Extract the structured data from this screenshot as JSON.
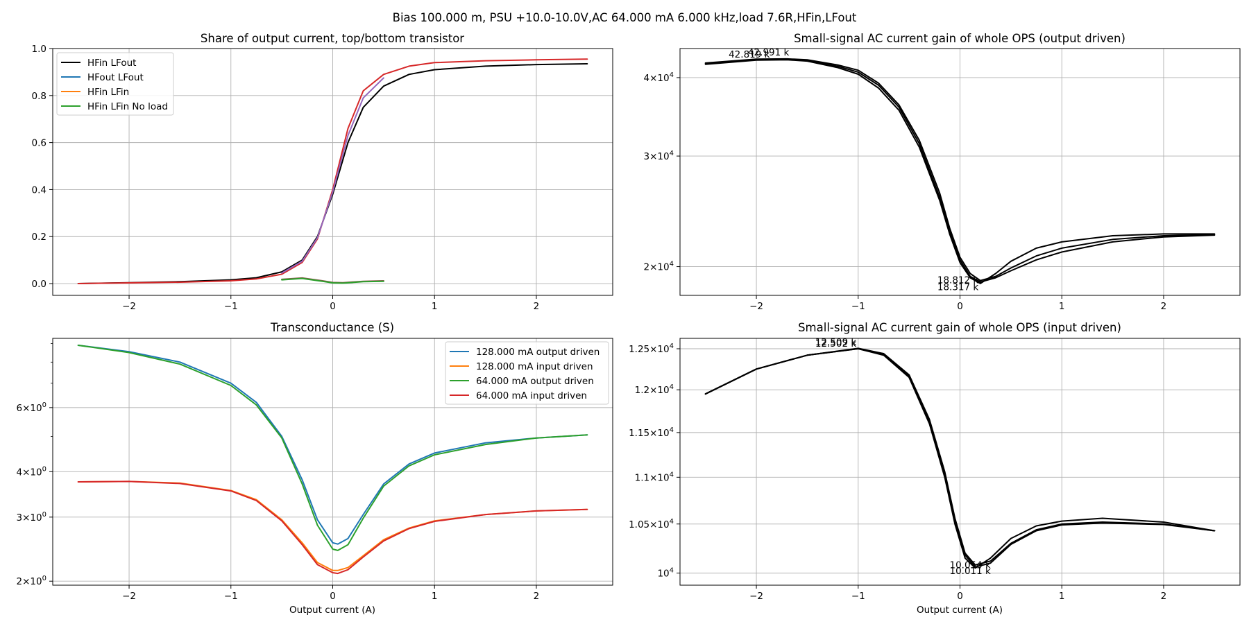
{
  "suptitle": "Bias 100.000 m, PSU +10.0-10.0V,AC 64.000 mA 6.000 kHz,load 7.6R,HFin,LFout",
  "chart_data": [
    {
      "id": "share",
      "type": "line",
      "title": "Share of output current, top/bottom transistor",
      "xlabel": "",
      "ylabel": "",
      "xlim": [
        -2.75,
        2.75
      ],
      "ylim": [
        -0.05,
        1.0
      ],
      "yscale": "linear",
      "xticks": [
        -2,
        -1,
        0,
        1,
        2
      ],
      "xtick_labels": [
        "−2",
        "−1",
        "0",
        "1",
        "2"
      ],
      "yticks": [
        0.0,
        0.2,
        0.4,
        0.6,
        0.8,
        1.0
      ],
      "ytick_labels": [
        "0.0",
        "0.2",
        "0.4",
        "0.6",
        "0.8",
        "1.0"
      ],
      "grid": true,
      "legend_position": "upper-left",
      "legend": [
        {
          "label": "HFin LFout",
          "color": "#000000"
        },
        {
          "label": "HFout LFout",
          "color": "#1f77b4"
        },
        {
          "label": "HFin LFin",
          "color": "#ff7f0e"
        },
        {
          "label": "HFin LFin No load",
          "color": "#2ca02c"
        }
      ],
      "series": [
        {
          "name": "HFin LFout",
          "color": "#000000",
          "x": [
            -2.5,
            -2.0,
            -1.5,
            -1.0,
            -0.75,
            -0.5,
            -0.3,
            -0.15,
            0.0,
            0.15,
            0.3,
            0.5,
            0.75,
            1.0,
            1.5,
            2.0,
            2.5
          ],
          "y": [
            0.0,
            0.004,
            0.008,
            0.016,
            0.025,
            0.05,
            0.1,
            0.2,
            0.38,
            0.6,
            0.75,
            0.84,
            0.89,
            0.91,
            0.925,
            0.932,
            0.935
          ]
        },
        {
          "name": "",
          "color": "#d62728",
          "x": [
            -2.5,
            -2.0,
            -1.5,
            -1.0,
            -0.75,
            -0.5,
            -0.3,
            -0.15,
            0.0,
            0.15,
            0.3,
            0.5,
            0.75,
            1.0,
            1.5,
            2.0,
            2.5
          ],
          "y": [
            0.0,
            0.003,
            0.006,
            0.012,
            0.02,
            0.04,
            0.09,
            0.19,
            0.4,
            0.66,
            0.82,
            0.89,
            0.925,
            0.94,
            0.948,
            0.952,
            0.955
          ]
        },
        {
          "name": "",
          "color": "#9467bd",
          "x": [
            -0.5,
            -0.3,
            -0.15,
            0.0,
            0.15,
            0.3,
            0.5
          ],
          "y": [
            0.045,
            0.095,
            0.195,
            0.39,
            0.63,
            0.79,
            0.875
          ]
        },
        {
          "name": "",
          "color": "#8c564b",
          "x": [
            -0.5,
            -0.3,
            -0.1,
            0.0,
            0.1,
            0.3,
            0.5
          ],
          "y": [
            0.018,
            0.024,
            0.012,
            0.005,
            0.004,
            0.01,
            0.012
          ]
        },
        {
          "name": "",
          "color": "#2ca02c",
          "x": [
            -0.5,
            -0.3,
            -0.1,
            0.0,
            0.1,
            0.3,
            0.5
          ],
          "y": [
            0.016,
            0.022,
            0.01,
            0.003,
            0.002,
            0.008,
            0.01
          ]
        }
      ],
      "annotations": []
    },
    {
      "id": "gain_output",
      "type": "line",
      "title": "Small-signal AC current gain of whole OPS (output driven)",
      "xlabel": "",
      "ylabel": "",
      "xlim": [
        -2.75,
        2.75
      ],
      "ylim": [
        18000,
        44500
      ],
      "yscale": "log",
      "xticks": [
        -2,
        -1,
        0,
        1,
        2
      ],
      "xtick_labels": [
        "−2",
        "−1",
        "0",
        "1",
        "2"
      ],
      "yticks": [
        20000,
        30000,
        40000
      ],
      "ytick_labels": [
        [
          "2",
          "×",
          "10",
          "4"
        ],
        [
          "3",
          "×",
          "10",
          "4"
        ],
        [
          "4",
          "×",
          "10",
          "4"
        ]
      ],
      "grid": true,
      "series": [
        {
          "name": "",
          "color": "#000000",
          "x": [
            -2.5,
            -2.0,
            -1.7,
            -1.5,
            -1.2,
            -1.0,
            -0.8,
            -0.6,
            -0.4,
            -0.2,
            -0.1,
            0.0,
            0.1,
            0.2,
            0.35,
            0.5,
            0.75,
            1.0,
            1.5,
            2.0,
            2.5
          ],
          "y": [
            42000,
            42650,
            42700,
            42500,
            41500,
            40500,
            38500,
            35500,
            31000,
            25500,
            22500,
            20300,
            19200,
            18800,
            19500,
            20400,
            21400,
            21900,
            22400,
            22550,
            22550
          ]
        },
        {
          "name": "",
          "color": "#000000",
          "x": [
            -2.5,
            -2.0,
            -1.7,
            -1.5,
            -1.2,
            -1.0,
            -0.8,
            -0.6,
            -0.4,
            -0.2,
            -0.1,
            0.0,
            0.1,
            0.2,
            0.35,
            0.5,
            0.75,
            1.0,
            1.5,
            2.0,
            2.5
          ],
          "y": [
            42200,
            42800,
            42850,
            42700,
            41900,
            41100,
            39200,
            36200,
            31800,
            26200,
            23000,
            20700,
            19500,
            19000,
            19300,
            19900,
            20800,
            21400,
            22100,
            22400,
            22500
          ]
        },
        {
          "name": "",
          "color": "#000000",
          "x": [
            -2.5,
            -2.0,
            -1.7,
            -1.5,
            -1.2,
            -1.0,
            -0.8,
            -0.6,
            -0.4,
            -0.2,
            -0.1,
            0.0,
            0.1,
            0.2,
            0.35,
            0.5,
            0.75,
            1.0,
            1.5,
            2.0,
            2.5
          ],
          "y": [
            42100,
            42750,
            42800,
            42600,
            41700,
            40800,
            38900,
            35900,
            31400,
            25800,
            22700,
            20500,
            19300,
            18900,
            19200,
            19700,
            20500,
            21100,
            21900,
            22300,
            22450
          ]
        }
      ],
      "annotations": [
        {
          "text": "42.991 k",
          "x": -1.88,
          "y": 43400
        },
        {
          "text": "42.819 k",
          "x": -2.07,
          "y": 43050
        },
        {
          "text": "18.812 k",
          "x": -0.02,
          "y": 18820
        },
        {
          "text": "18.317 k",
          "x": -0.02,
          "y": 18340
        }
      ]
    },
    {
      "id": "transconductance",
      "type": "line",
      "title": "Transconductance (S)",
      "xlabel": "Output current (A)",
      "ylabel": "",
      "xlim": [
        -2.75,
        2.75
      ],
      "ylim": [
        1.95,
        9.3
      ],
      "yscale": "log",
      "xticks": [
        -2,
        -1,
        0,
        1,
        2
      ],
      "xtick_labels": [
        "−2",
        "−1",
        "0",
        "1",
        "2"
      ],
      "yticks": [
        2,
        3,
        4,
        6
      ],
      "ytick_labels": [
        [
          "2",
          "×",
          "10",
          "0"
        ],
        [
          "3",
          "×",
          "10",
          "0"
        ],
        [
          "4",
          "×",
          "10",
          "0"
        ],
        [
          "6",
          "×",
          "10",
          "0"
        ]
      ],
      "minor_yticks": [
        5,
        7,
        8,
        9
      ],
      "grid": true,
      "legend_position": "upper-right",
      "legend": [
        {
          "label": "128.000 mA output driven",
          "color": "#1f77b4"
        },
        {
          "label": "128.000 mA input driven",
          "color": "#ff7f0e"
        },
        {
          "label": "64.000 mA output driven",
          "color": "#2ca02c"
        },
        {
          "label": "64.000 mA input driven",
          "color": "#d62728"
        }
      ],
      "series": [
        {
          "name": "128.000 mA output driven",
          "color": "#1f77b4",
          "x": [
            -2.5,
            -2.0,
            -1.5,
            -1.0,
            -0.75,
            -0.5,
            -0.3,
            -0.15,
            0.0,
            0.05,
            0.15,
            0.3,
            0.5,
            0.75,
            1.0,
            1.5,
            2.0,
            2.5
          ],
          "y": [
            8.9,
            8.55,
            8.0,
            7.0,
            6.2,
            5.0,
            3.8,
            2.95,
            2.55,
            2.53,
            2.62,
            3.05,
            3.7,
            4.2,
            4.5,
            4.8,
            4.95,
            5.05
          ]
        },
        {
          "name": "128.000 mA input driven",
          "color": "#ff7f0e",
          "x": [
            -2.5,
            -2.0,
            -1.5,
            -1.0,
            -0.75,
            -0.5,
            -0.3,
            -0.15,
            0.0,
            0.05,
            0.15,
            0.3,
            0.5,
            0.75,
            1.0,
            1.5,
            2.0,
            2.5
          ],
          "y": [
            3.75,
            3.76,
            3.72,
            3.55,
            3.35,
            2.95,
            2.55,
            2.25,
            2.14,
            2.14,
            2.18,
            2.35,
            2.6,
            2.8,
            2.93,
            3.05,
            3.12,
            3.15
          ]
        },
        {
          "name": "64.000 mA output driven",
          "color": "#2ca02c",
          "x": [
            -2.5,
            -2.0,
            -1.5,
            -1.0,
            -0.75,
            -0.5,
            -0.3,
            -0.15,
            0.0,
            0.05,
            0.15,
            0.3,
            0.5,
            0.75,
            1.0,
            1.5,
            2.0,
            2.5
          ],
          "y": [
            8.9,
            8.5,
            7.9,
            6.9,
            6.1,
            4.95,
            3.7,
            2.85,
            2.45,
            2.43,
            2.52,
            2.98,
            3.65,
            4.15,
            4.45,
            4.75,
            4.95,
            5.05
          ]
        },
        {
          "name": "64.000 mA input driven",
          "color": "#d62728",
          "x": [
            -2.5,
            -2.0,
            -1.5,
            -1.0,
            -0.75,
            -0.5,
            -0.3,
            -0.15,
            0.0,
            0.05,
            0.15,
            0.3,
            0.5,
            0.75,
            1.0,
            1.5,
            2.0,
            2.5
          ],
          "y": [
            3.75,
            3.76,
            3.71,
            3.54,
            3.33,
            2.93,
            2.52,
            2.22,
            2.11,
            2.1,
            2.15,
            2.33,
            2.58,
            2.79,
            2.92,
            3.05,
            3.12,
            3.15
          ]
        }
      ],
      "annotations": []
    },
    {
      "id": "gain_input",
      "type": "line",
      "title": "Small-signal AC current gain of whole OPS (input driven)",
      "xlabel": "Output current (A)",
      "ylabel": "",
      "xlim": [
        -2.75,
        2.75
      ],
      "ylim": [
        9880,
        12630
      ],
      "yscale": "log",
      "xticks": [
        -2,
        -1,
        0,
        1,
        2
      ],
      "xtick_labels": [
        "−2",
        "−1",
        "0",
        "1",
        "2"
      ],
      "yticks": [
        10000,
        10500,
        11000,
        11500,
        12000,
        12500
      ],
      "ytick_labels": [
        [
          "10",
          "",
          "",
          "4"
        ],
        [
          "1.05",
          "×",
          "10",
          "4"
        ],
        [
          "1.1",
          "×",
          "10",
          "4"
        ],
        [
          "1.15",
          "×",
          "10",
          "4"
        ],
        [
          "1.2",
          "×",
          "10",
          "4"
        ],
        [
          "1.25",
          "×",
          "10",
          "4"
        ]
      ],
      "grid": true,
      "series": [
        {
          "name": "",
          "color": "#000000",
          "x": [
            -2.5,
            -2.0,
            -1.5,
            -1.0,
            -0.75,
            -0.5,
            -0.3,
            -0.15,
            -0.05,
            0.05,
            0.15,
            0.3,
            0.5,
            0.75,
            1.0,
            1.4,
            2.0,
            2.5
          ],
          "y": [
            11950,
            12250,
            12420,
            12500,
            12420,
            12150,
            11600,
            11000,
            10500,
            10150,
            10050,
            10150,
            10350,
            10480,
            10530,
            10560,
            10520,
            10430
          ]
        },
        {
          "name": "",
          "color": "#000000",
          "x": [
            -2.5,
            -2.0,
            -1.5,
            -1.0,
            -0.75,
            -0.5,
            -0.3,
            -0.15,
            -0.05,
            0.05,
            0.15,
            0.3,
            0.5,
            0.75,
            1.0,
            1.4,
            2.0,
            2.5
          ],
          "y": [
            11950,
            12250,
            12420,
            12505,
            12440,
            12180,
            11650,
            11060,
            10560,
            10200,
            10080,
            10120,
            10300,
            10440,
            10500,
            10520,
            10500,
            10430
          ]
        },
        {
          "name": "",
          "color": "#000000",
          "x": [
            -2.5,
            -2.0,
            -1.5,
            -1.0,
            -0.75,
            -0.5,
            -0.3,
            -0.15,
            -0.05,
            0.05,
            0.15,
            0.3,
            0.5,
            0.75,
            1.0,
            1.4,
            2.0,
            2.5
          ],
          "y": [
            11950,
            12250,
            12420,
            12500,
            12430,
            12165,
            11620,
            11030,
            10530,
            10180,
            10060,
            10100,
            10290,
            10430,
            10490,
            10510,
            10495,
            10430
          ]
        }
      ],
      "annotations": [
        {
          "text": "12.509 k",
          "x": -1.22,
          "y": 12545
        },
        {
          "text": "12.502 k",
          "x": -1.22,
          "y": 12525
        },
        {
          "text": "10.054 k",
          "x": 0.1,
          "y": 10050
        },
        {
          "text": "10.011 k",
          "x": 0.1,
          "y": 9990
        }
      ]
    }
  ]
}
